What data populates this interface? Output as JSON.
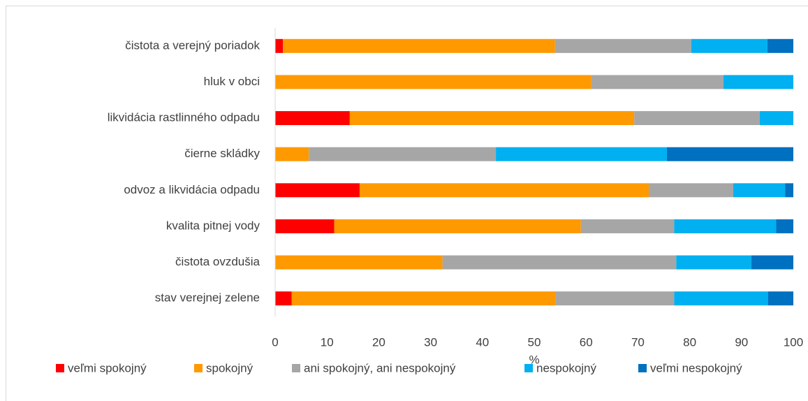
{
  "chart_data": {
    "type": "stacked-bar-horizontal",
    "categories": [
      "čistota a verejný poriadok",
      "hluk v obci",
      "likvidácia rastlinného odpadu",
      "čierne skládky",
      "odvoz a likvidácia odpadu",
      "kvalita pitnej vody",
      "čistota ovzdušia",
      "stav verejnej zelene"
    ],
    "series": [
      {
        "name": "veľmi spokojný",
        "color": "#ff0000",
        "values": [
          1.5,
          0,
          14.4,
          0,
          16.3,
          11.4,
          0,
          3.2
        ]
      },
      {
        "name": "spokojný",
        "color": "#ff9900",
        "values": [
          52.5,
          61,
          54.9,
          6.5,
          55.8,
          47.6,
          32.3,
          50.9
        ]
      },
      {
        "name": "ani spokojný, ani nespokojný",
        "color": "#a6a6a6",
        "values": [
          26.3,
          25.5,
          24.2,
          36.1,
          16.3,
          18,
          45.1,
          22.9
        ]
      },
      {
        "name": "nespokojný",
        "color": "#00b0f0",
        "values": [
          14.7,
          13.5,
          6.5,
          33,
          10,
          19.7,
          14.5,
          18.1
        ]
      },
      {
        "name": "veľmi nespokojný",
        "color": "#0070c0",
        "values": [
          5,
          0,
          0,
          24.4,
          1.6,
          3.3,
          8.1,
          4.9
        ]
      }
    ],
    "xlabel": "%",
    "xlim": [
      0,
      100
    ],
    "xticks": [
      0,
      10,
      20,
      30,
      40,
      50,
      60,
      70,
      80,
      90,
      100
    ],
    "legend": "bottom",
    "grid": false
  }
}
